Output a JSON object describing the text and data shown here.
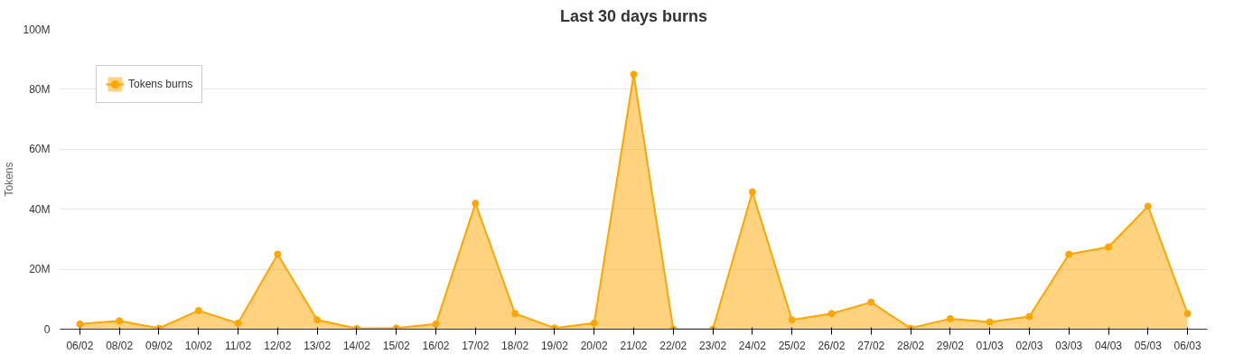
{
  "chart_data": {
    "type": "area",
    "title": "Last 30 days burns",
    "ylabel": "Tokens",
    "categories": [
      "06/02",
      "08/02",
      "09/02",
      "10/02",
      "11/02",
      "12/02",
      "13/02",
      "14/02",
      "15/02",
      "16/02",
      "17/02",
      "18/02",
      "19/02",
      "20/02",
      "21/02",
      "22/02",
      "23/02",
      "24/02",
      "25/02",
      "26/02",
      "27/02",
      "28/02",
      "29/02",
      "01/03",
      "02/03",
      "03/03",
      "04/03",
      "05/03",
      "06/03"
    ],
    "series": [
      {
        "name": "Tokens burns",
        "color": "#ffa500",
        "values": [
          1700000,
          2800000,
          300000,
          6200000,
          2000000,
          25000000,
          3100000,
          200000,
          400000,
          1700000,
          42000000,
          5200000,
          400000,
          2000000,
          85000000,
          0,
          0,
          45800000,
          3100000,
          5200000,
          9000000,
          300000,
          3500000,
          2400000,
          4200000,
          25000000,
          27400000,
          41000000,
          5200000
        ]
      }
    ],
    "ylim": [
      0,
      100000000
    ],
    "yticks": [
      {
        "value": 0,
        "label": "0"
      },
      {
        "value": 20000000,
        "label": "20M"
      },
      {
        "value": 40000000,
        "label": "40M"
      },
      {
        "value": 60000000,
        "label": "60M"
      },
      {
        "value": 80000000,
        "label": "80M"
      },
      {
        "value": 100000000,
        "label": "100M"
      }
    ],
    "grid": "y",
    "legend": "top left",
    "marker": "circle",
    "line_style": "solid"
  }
}
